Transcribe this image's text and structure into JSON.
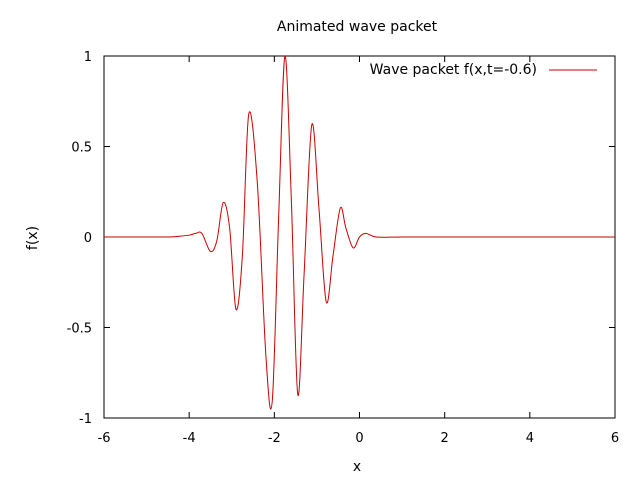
{
  "chart_data": {
    "type": "line",
    "title": "Animated wave packet",
    "xlabel": "x",
    "ylabel": "f(x)",
    "xlim": [
      -6,
      6
    ],
    "ylim": [
      -1,
      1
    ],
    "xticks": [
      -6,
      -4,
      -2,
      0,
      2,
      4,
      6
    ],
    "yticks": [
      -1,
      -0.5,
      0,
      0.5,
      1
    ],
    "xtick_labels": [
      "-6",
      "-4",
      "-2",
      "0",
      "2",
      "4",
      "6"
    ],
    "ytick_labels": [
      "-1",
      "-0.5",
      "0",
      "0.5",
      "1"
    ],
    "grid": false,
    "legend_position": "top-right",
    "series": [
      {
        "name": "Wave packet f(x,t=-0.6)",
        "color": "#cc0000",
        "x": [
          -6,
          -5.5,
          -5,
          -4.5,
          -4.2,
          -4,
          -3.85,
          -3.7,
          -3.5,
          -3.35,
          -3.2,
          -3.05,
          -2.9,
          -2.75,
          -2.6,
          -2.4,
          -2.2,
          -2.05,
          -1.9,
          -1.75,
          -1.6,
          -1.45,
          -1.3,
          -1.12,
          -0.95,
          -0.78,
          -0.62,
          -0.45,
          -0.32,
          -0.15,
          0,
          0.15,
          0.4,
          1,
          2,
          3,
          4,
          5,
          6
        ],
        "y": [
          0,
          0,
          0,
          0,
          0.005,
          0.01,
          0.02,
          0.02,
          -0.08,
          -0.02,
          0.19,
          0.05,
          -0.4,
          -0.1,
          0.68,
          0.3,
          -0.65,
          -0.91,
          0.1,
          1.0,
          0.2,
          -0.87,
          -0.2,
          0.62,
          0.15,
          -0.36,
          -0.1,
          0.16,
          0.05,
          -0.06,
          0,
          0.02,
          0,
          0,
          0,
          0,
          0,
          0,
          0
        ]
      }
    ]
  }
}
